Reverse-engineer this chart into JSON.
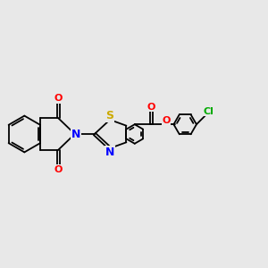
{
  "background_color": "#e8e8e8",
  "bond_color": "#000000",
  "N_color": "#0000ff",
  "S_color": "#ccaa00",
  "O_color": "#ff0000",
  "Cl_color": "#00aa00",
  "font_size": 8,
  "figsize": [
    3.0,
    3.0
  ],
  "dpi": 100,
  "xlim": [
    0,
    12
  ],
  "ylim": [
    1,
    9
  ]
}
